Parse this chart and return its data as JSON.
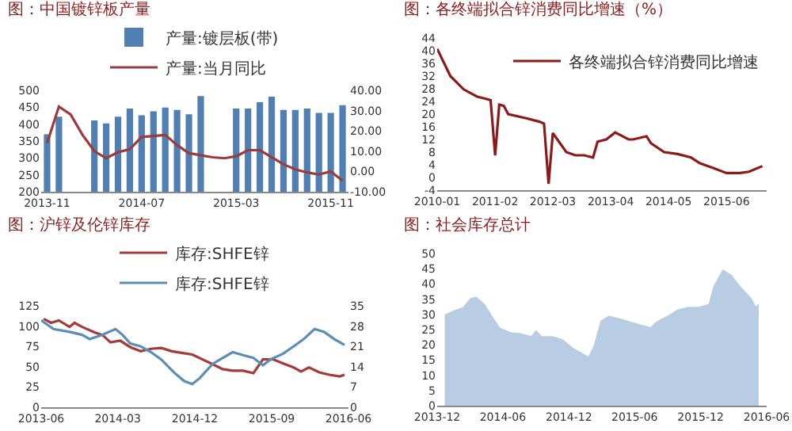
{
  "chart_data": [
    {
      "type": "bar",
      "title": "图：中国镀锌板产量",
      "categories": [
        "2013-11",
        null,
        null,
        null,
        null,
        null,
        null,
        null,
        "2014-07",
        null,
        null,
        null,
        null,
        null,
        null,
        null,
        "2015-03",
        null,
        null,
        null,
        null,
        null,
        null,
        null,
        "2015-11",
        null
      ],
      "series": [
        {
          "name": "产量:镀层板(带)",
          "color": "#4f7fb3",
          "values": [
            370,
            422,
            null,
            null,
            411,
            402,
            422,
            446,
            426,
            438,
            449,
            442,
            429,
            483,
            null,
            null,
            446,
            446,
            465,
            481,
            442,
            442,
            446,
            433,
            433,
            456
          ]
        },
        {
          "name": "产量:当月同比",
          "type": "line",
          "axis": "y2",
          "color": "#9b3c3c",
          "values": [
            14,
            32,
            28,
            18,
            10,
            6.5,
            9.5,
            11,
            17,
            17.5,
            18,
            13,
            9,
            8,
            7,
            6.5,
            7.5,
            10.5,
            10.5,
            7,
            3.5,
            1,
            -0.5,
            -1.5,
            0,
            -4.5
          ]
        }
      ],
      "ylim": [
        200,
        500
      ],
      "yticks": [
        200,
        250,
        300,
        350,
        400,
        450,
        500
      ],
      "y2lim": [
        -10,
        40
      ],
      "y2ticks": [
        {
          "value": -10,
          "label": "-10.00"
        },
        {
          "value": 0,
          "label": "0.00"
        },
        {
          "value": 10,
          "label": "10.00"
        },
        {
          "value": 20,
          "label": "20.00"
        },
        {
          "value": 30,
          "label": "30.00"
        },
        {
          "value": 40,
          "label": "40.00"
        }
      ],
      "legend": "top"
    },
    {
      "type": "line",
      "title": "图：各终端拟合锌消费同比增速（%）",
      "series": [
        {
          "name": "各终端拟合锌消费同比增速",
          "color": "#8b1a1a",
          "x": [
            "2010-01",
            "2010-04",
            "2010-07",
            "2010-10",
            "2010-12",
            "2011-01",
            "2011-02",
            "2011-03",
            "2011-04",
            "2011-05",
            "2011-09",
            "2011-12",
            "2012-01",
            "2012-02",
            "2012-03",
            "2012-04",
            "2012-06",
            "2012-08",
            "2012-10",
            "2012-12",
            "2013-01",
            "2013-03",
            "2013-05",
            "2013-08",
            "2013-09",
            "2013-12",
            "2014-01",
            "2014-04",
            "2014-07",
            "2014-10",
            "2014-12",
            "2015-03",
            "2015-06",
            "2015-09",
            "2015-11",
            "2016-02"
          ],
          "values": [
            40.6,
            32,
            27.8,
            25.5,
            24.8,
            24.4,
            7,
            23,
            22.6,
            20,
            18.7,
            17.6,
            17,
            -2,
            14,
            12,
            8,
            7,
            7,
            6.3,
            11.3,
            12,
            14.2,
            12,
            12,
            13,
            10.8,
            8,
            7.4,
            6.3,
            4.5,
            3,
            1.4,
            1.4,
            1.8,
            3.6
          ]
        }
      ],
      "xlim": [
        "2010-01",
        "2016-03"
      ],
      "xticks": [
        "2010-01",
        "2011-02",
        "2012-03",
        "2013-04",
        "2014-05",
        "2015-06"
      ],
      "ylim": [
        -4,
        44
      ],
      "yticks": [
        -4,
        0,
        4,
        8,
        12,
        16,
        20,
        24,
        28,
        32,
        36,
        40,
        44
      ],
      "legend": "top right"
    },
    {
      "type": "line",
      "title": "图：沪锌及伦锌库存",
      "series": [
        {
          "name": "库存:SHFE锌",
          "color": "#a33b3b",
          "x": [
            "2013-06-10",
            "2013-07-06",
            "2013-08-03",
            "2013-09-10",
            "2013-09-28",
            "2013-10-25",
            "2013-12-10",
            "2014-01-06",
            "2014-02-03",
            "2014-03-10",
            "2014-04-15",
            "2014-05-22",
            "2014-06-28",
            "2014-08-03",
            "2014-09-10",
            "2014-10-15",
            "2014-11-22",
            "2014-12-28",
            "2015-02-03",
            "2015-03-10",
            "2015-04-15",
            "2015-05-22",
            "2015-06-28",
            "2015-08-01",
            "2015-09-06",
            "2015-10-12",
            "2015-11-18",
            "2015-12-15",
            "2016-01-12",
            "2016-02-18",
            "2016-03-25",
            "2016-05-01",
            "2016-05-18"
          ],
          "values": [
            109,
            104,
            107,
            99,
            104,
            99,
            92,
            89,
            80,
            82,
            74,
            69,
            72,
            73,
            69,
            67,
            65,
            59,
            53,
            47,
            45,
            45,
            42,
            59,
            59,
            54,
            49,
            44,
            49,
            43,
            40,
            38,
            40
          ]
        },
        {
          "name": "库存:SHFE锌",
          "axis": "y2",
          "color": "#5b8db8",
          "x": [
            "2013-06-01",
            "2013-07-15",
            "2013-09-10",
            "2013-10-25",
            "2013-11-21",
            "2014-01-06",
            "2014-02-21",
            "2014-03-18",
            "2014-04-15",
            "2014-05-22",
            "2014-06-28",
            "2014-08-03",
            "2014-09-18",
            "2014-10-24",
            "2014-11-22",
            "2014-12-18",
            "2015-02-03",
            "2015-03-10",
            "2015-04-15",
            "2015-05-22",
            "2015-06-28",
            "2015-08-01",
            "2015-08-28",
            "2015-10-12",
            "2015-11-18",
            "2015-12-24",
            "2016-02-01",
            "2016-03-06",
            "2016-04-12",
            "2016-05-18"
          ],
          "values": [
            30,
            27,
            26,
            25,
            23.5,
            25,
            27,
            25,
            22,
            21,
            19,
            16.5,
            12,
            9,
            8,
            10,
            15,
            17,
            19,
            18,
            17,
            14.5,
            16.5,
            18.5,
            21,
            23.5,
            27,
            26,
            23.5,
            21.5
          ]
        }
      ],
      "xlim": [
        "2013-06-01",
        "2016-06-01"
      ],
      "xticks": [
        "2013-06",
        "2014-03",
        "2014-12",
        "2015-09",
        "2016-06"
      ],
      "ylim": [
        0,
        125
      ],
      "yticks": [
        0,
        25,
        50,
        75,
        100,
        125
      ],
      "y2lim": [
        0,
        35
      ],
      "y2ticks": [
        0,
        7,
        14,
        21,
        28,
        35
      ],
      "legend": "top"
    },
    {
      "type": "area",
      "title": "图：社会库存总计",
      "color": "#b8cce4",
      "x": [
        "2013-12-22",
        "2014-01-22",
        "2014-02-12",
        "2014-03-04",
        "2014-03-19",
        "2014-04-10",
        "2014-05-01",
        "2014-05-22",
        "2014-06-22",
        "2014-07-19",
        "2014-08-19",
        "2014-09-01",
        "2014-09-16",
        "2014-10-16",
        "2014-11-13",
        "2014-12-13",
        "2015-01-10",
        "2015-01-25",
        "2015-02-10",
        "2015-03-01",
        "2015-03-22",
        "2015-04-22",
        "2015-05-19",
        "2015-06-19",
        "2015-07-16",
        "2015-08-01",
        "2015-09-01",
        "2015-09-28",
        "2015-10-28",
        "2015-11-25",
        "2015-12-25",
        "2016-01-07",
        "2016-02-01",
        "2016-02-22",
        "2016-03-19",
        "2016-04-19",
        "2016-05-01",
        "2016-05-10"
      ],
      "values": [
        29.7,
        31.3,
        32.2,
        35.1,
        35.5,
        33.2,
        29.3,
        25.5,
        23.9,
        23.6,
        22.6,
        24.5,
        22.6,
        22.6,
        21.6,
        18.7,
        16.8,
        15.8,
        19.7,
        27.8,
        29.3,
        28.4,
        27.4,
        26.4,
        25.5,
        27.4,
        29.3,
        31.3,
        32.2,
        32.2,
        33.2,
        39,
        44.4,
        42.9,
        39,
        35.1,
        32.2,
        33.2
      ],
      "xlim": [
        "2013-12-01",
        "2016-06-01"
      ],
      "xticks": [
        "2013-12",
        "2014-06",
        "2014-12",
        "2015-06",
        "2015-12",
        "2016-06"
      ],
      "ylim": [
        0,
        50
      ],
      "yticks": [
        0,
        5,
        10,
        15,
        20,
        25,
        30,
        35,
        40,
        45,
        50
      ]
    }
  ]
}
